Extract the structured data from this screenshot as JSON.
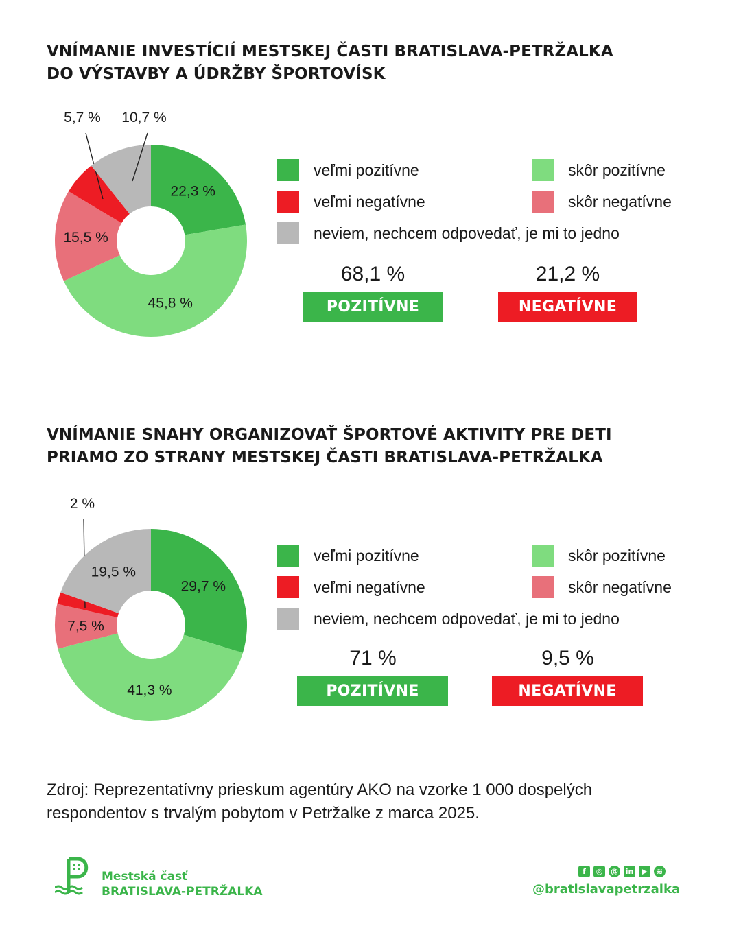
{
  "colors": {
    "very_positive": "#3bb54a",
    "rather_positive": "#7fdc7f",
    "very_negative": "#ed1c24",
    "rather_negative": "#e8707a",
    "dont_know": "#b8b8b8",
    "positive_badge": "#3bb54a",
    "negative_badge": "#ed1c24",
    "brand": "#3bb54a"
  },
  "legend_labels": {
    "very_positive": "veľmi pozitívne",
    "rather_positive": "skôr pozitívne",
    "very_negative": "veľmi negatívne",
    "rather_negative": "skôr negatívne",
    "dont_know": "neviem, nechcem odpovedať, je mi to jedno"
  },
  "sections": [
    {
      "title_lines": [
        "VNÍMANIE INVESTÍCIÍ MESTSKEJ ČASTI BRATISLAVA-PETRŽALKA",
        "DO VÝSTAVBY A ÚDRŽBY ŠPORTOVÍSK"
      ],
      "positive_value": "68,1 %",
      "positive_label": "POZITÍVNE",
      "negative_value": "21,2 %",
      "negative_label": "NEGATÍVNE"
    },
    {
      "title_lines": [
        "VNÍMANIE SNAHY ORGANIZOVAŤ ŠPORTOVÉ AKTIVITY PRE DETI",
        "PRIAMO ZO STRANY MESTSKEJ ČASTI BRATISLAVA-PETRŽALKA"
      ],
      "positive_value": "71 %",
      "positive_label": "POZITÍVNE",
      "negative_value": "9,5 %",
      "negative_label": "NEGATÍVNE"
    }
  ],
  "chart_data": [
    {
      "type": "pie",
      "title": "VNÍMANIE INVESTÍCIÍ MESTSKEJ ČASTI BRATISLAVA-PETRŽALKA DO VÝSTAVBY A ÚDRŽBY ŠPORTOVÍSK",
      "variant": "donut",
      "slices": [
        {
          "key": "very_positive",
          "name": "veľmi pozitívne",
          "value": 22.3,
          "label": "22,3 %"
        },
        {
          "key": "rather_positive",
          "name": "skôr pozitívne",
          "value": 45.8,
          "label": "45,8 %"
        },
        {
          "key": "rather_negative",
          "name": "skôr negatívne",
          "value": 15.5,
          "label": "15,5 %"
        },
        {
          "key": "very_negative",
          "name": "veľmi negatívne",
          "value": 5.7,
          "label": "5,7 %"
        },
        {
          "key": "dont_know",
          "name": "neviem, nechcem odpovedať, je mi to jedno",
          "value": 10.7,
          "label": "10,7 %"
        }
      ],
      "legend_placement": "right"
    },
    {
      "type": "pie",
      "title": "VNÍMANIE SNAHY ORGANIZOVAŤ ŠPORTOVÉ AKTIVITY PRE DETI PRIAMO ZO STRANY MESTSKEJ ČASTI BRATISLAVA-PETRŽALKA",
      "variant": "donut",
      "slices": [
        {
          "key": "very_positive",
          "name": "veľmi pozitívne",
          "value": 29.7,
          "label": "29,7 %"
        },
        {
          "key": "rather_positive",
          "name": "skôr pozitívne",
          "value": 41.3,
          "label": "41,3 %"
        },
        {
          "key": "rather_negative",
          "name": "skôr negatívne",
          "value": 7.5,
          "label": "7,5 %"
        },
        {
          "key": "very_negative",
          "name": "veľmi negatívne",
          "value": 2,
          "label": "2 %"
        },
        {
          "key": "dont_know",
          "name": "neviem, nechcem odpovedať, je mi to jedno",
          "value": 19.5,
          "label": "19,5 %"
        }
      ],
      "legend_placement": "right"
    }
  ],
  "source": {
    "lines": [
      "Zdroj: Reprezentatívny prieskum agentúry AKO na vzorke 1 000 dospelých",
      "respondentov s trvalým pobytom v Petržalke z marca 2025."
    ]
  },
  "footer": {
    "logo_line1": "Mestská časť",
    "logo_line2": "BRATISLAVA-PETRŽALKA",
    "handle": "@bratislavapetrzalka",
    "social_icons": [
      "facebook-icon",
      "instagram-icon",
      "threads-icon",
      "linkedin-icon",
      "youtube-icon",
      "spotify-icon"
    ]
  }
}
